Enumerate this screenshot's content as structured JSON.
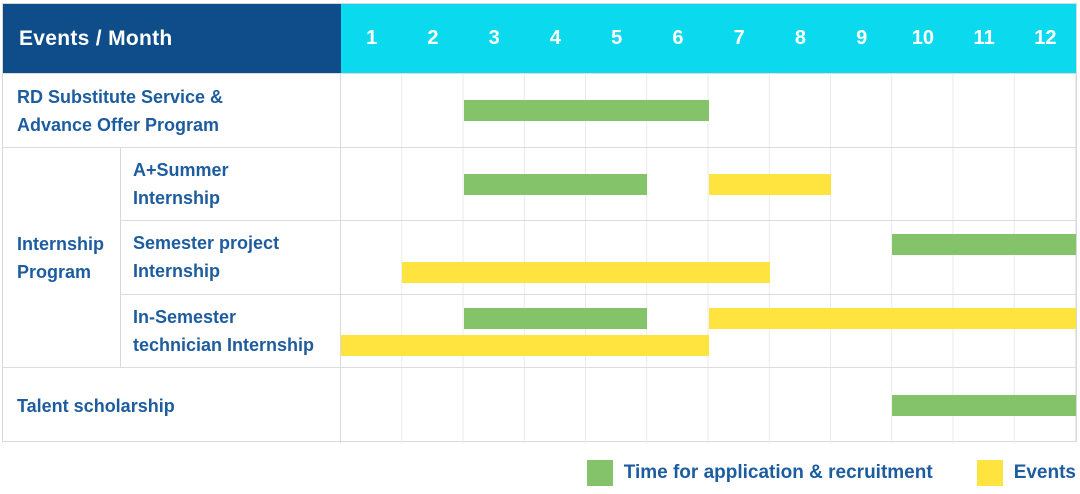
{
  "colors": {
    "header_bg": "#0e4d8a",
    "month_strip_bg": "#0bd9ee",
    "header_text": "#ffffff",
    "label_text": "#1d5c9e",
    "application_green": "#85c36a",
    "event_yellow": "#ffe33e"
  },
  "chart_data": {
    "type": "gantt",
    "title": "Events / Month",
    "x_axis": {
      "label": "Month",
      "range_months": [
        1,
        12
      ],
      "ticks": [
        "1",
        "2",
        "3",
        "4",
        "5",
        "6",
        "7",
        "8",
        "9",
        "10",
        "11",
        "12"
      ]
    },
    "group_label_lines": [
      "Internship",
      "Program"
    ],
    "legend": [
      {
        "key": "application",
        "label": "Time for application & recruitment",
        "color": "#85c36a"
      },
      {
        "key": "event",
        "label": "Events",
        "color": "#ffe33e"
      }
    ],
    "rows": [
      {
        "id": "rd-substitute-service",
        "group": "",
        "label_lines": [
          "RD Substitute Service &",
          "Advance Offer Program"
        ],
        "bars": [
          {
            "kind": "application",
            "from": 3,
            "to": 6,
            "lane": "center"
          }
        ]
      },
      {
        "id": "a-plus-summer-internship",
        "group": "Internship Program",
        "label_lines": [
          "A+Summer",
          "Internship"
        ],
        "bars": [
          {
            "kind": "application",
            "from": 3,
            "to": 5,
            "lane": "center"
          },
          {
            "kind": "event",
            "from": 7,
            "to": 8,
            "lane": "center"
          }
        ]
      },
      {
        "id": "semester-project-internship",
        "group": "Internship Program",
        "label_lines": [
          "Semester project",
          "Internship"
        ],
        "bars": [
          {
            "kind": "application",
            "from": 10,
            "to": 12,
            "lane": "upper"
          },
          {
            "kind": "event",
            "from": 2,
            "to": 7,
            "lane": "lower"
          }
        ]
      },
      {
        "id": "in-semester-technician-internship",
        "group": "Internship Program",
        "label_lines": [
          "In-Semester",
          "technician Internship"
        ],
        "bars": [
          {
            "kind": "application",
            "from": 3,
            "to": 5,
            "lane": "upper"
          },
          {
            "kind": "event",
            "from": 7,
            "to": 12,
            "lane": "upper"
          },
          {
            "kind": "event",
            "from": 1,
            "to": 6,
            "lane": "lower"
          }
        ]
      },
      {
        "id": "talent-scholarship",
        "group": "",
        "label_lines": [
          "Talent scholarship"
        ],
        "bars": [
          {
            "kind": "application",
            "from": 10,
            "to": 12,
            "lane": "center"
          }
        ]
      }
    ]
  }
}
